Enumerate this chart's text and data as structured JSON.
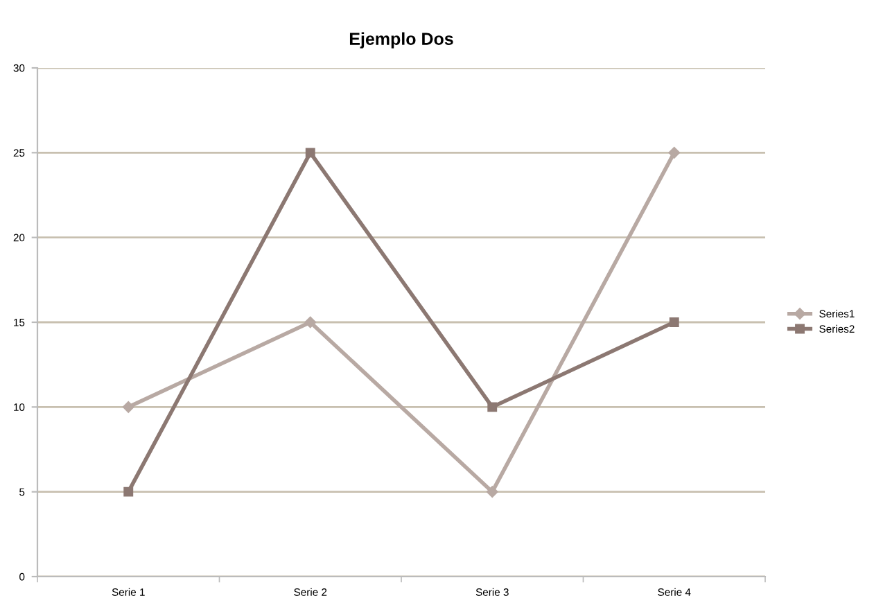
{
  "chart_data": {
    "type": "line",
    "title": "Ejemplo Dos",
    "categories": [
      "Serie 1",
      "Serie 2",
      "Serie 3",
      "Serie 4"
    ],
    "series": [
      {
        "name": "Series1",
        "color": "#b8a9a3",
        "values": [
          10,
          15,
          5,
          25
        ],
        "marker": "diamond"
      },
      {
        "name": "Series2",
        "color": "#8c7872",
        "values": [
          5,
          25,
          10,
          15
        ],
        "marker": "square"
      }
    ],
    "ylim": [
      0,
      30
    ],
    "yticks": [
      0,
      5,
      10,
      15,
      20,
      25,
      30
    ],
    "grid": "y",
    "legend": "right",
    "line_style": "solid"
  }
}
